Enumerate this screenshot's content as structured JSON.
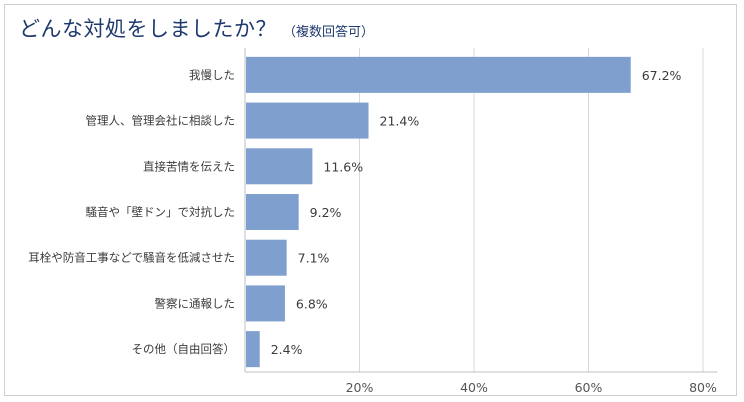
{
  "chart_data": {
    "type": "bar",
    "orientation": "horizontal",
    "title": "どんな対処をしましたか？",
    "subtitle": "（複数回答可）",
    "categories": [
      "我慢した",
      "管理人、管理会社に相談した",
      "直接苦情を伝えた",
      "騒音や「壁ドン」で対抗した",
      "耳栓や防音工事などで騒音を低減させた",
      "警察に通報した",
      "その他（自由回答）"
    ],
    "values": [
      67.2,
      21.4,
      11.6,
      9.2,
      7.1,
      6.8,
      2.4
    ],
    "value_labels": [
      "67.2%",
      "21.4%",
      "11.6%",
      "9.2%",
      "7.1%",
      "6.8%",
      "2.4%"
    ],
    "xlim": [
      0,
      80
    ],
    "xticks": [
      20,
      40,
      60,
      80
    ],
    "xtick_labels": [
      "20%",
      "40%",
      "60%",
      "80%"
    ],
    "grid": true,
    "bar_color": "#7f9fcf",
    "title_color": "#1f3a6e"
  }
}
